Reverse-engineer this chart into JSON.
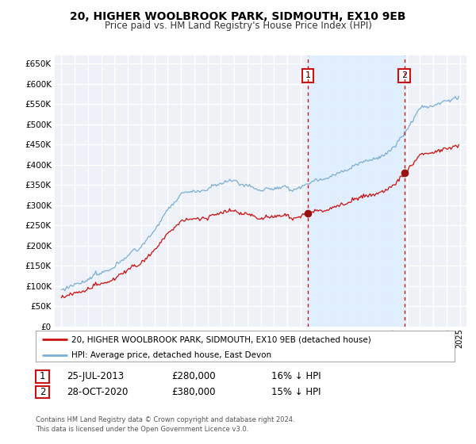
{
  "title1": "20, HIGHER WOOLBROOK PARK, SIDMOUTH, EX10 9EB",
  "title2": "Price paid vs. HM Land Registry's House Price Index (HPI)",
  "sale1_date": "25-JUL-2013",
  "sale1_price": 280000,
  "sale1_pct": "16%",
  "sale2_date": "28-OCT-2020",
  "sale2_price": 380000,
  "sale2_pct": "15%",
  "legend_line1": "20, HIGHER WOOLBROOK PARK, SIDMOUTH, EX10 9EB (detached house)",
  "legend_line2": "HPI: Average price, detached house, East Devon",
  "footnote": "Contains HM Land Registry data © Crown copyright and database right 2024.\nThis data is licensed under the Open Government Licence v3.0.",
  "hpi_color": "#7bafd4",
  "price_color": "#cc1111",
  "vline_color": "#cc1111",
  "shade_color": "#ddeeff",
  "grid_color": "#cccccc",
  "ylim_min": 0,
  "ylim_max": 670000,
  "xlim_min": 1994.5,
  "xlim_max": 2025.5,
  "sale1_t": 2013.55,
  "sale2_t": 2020.83
}
